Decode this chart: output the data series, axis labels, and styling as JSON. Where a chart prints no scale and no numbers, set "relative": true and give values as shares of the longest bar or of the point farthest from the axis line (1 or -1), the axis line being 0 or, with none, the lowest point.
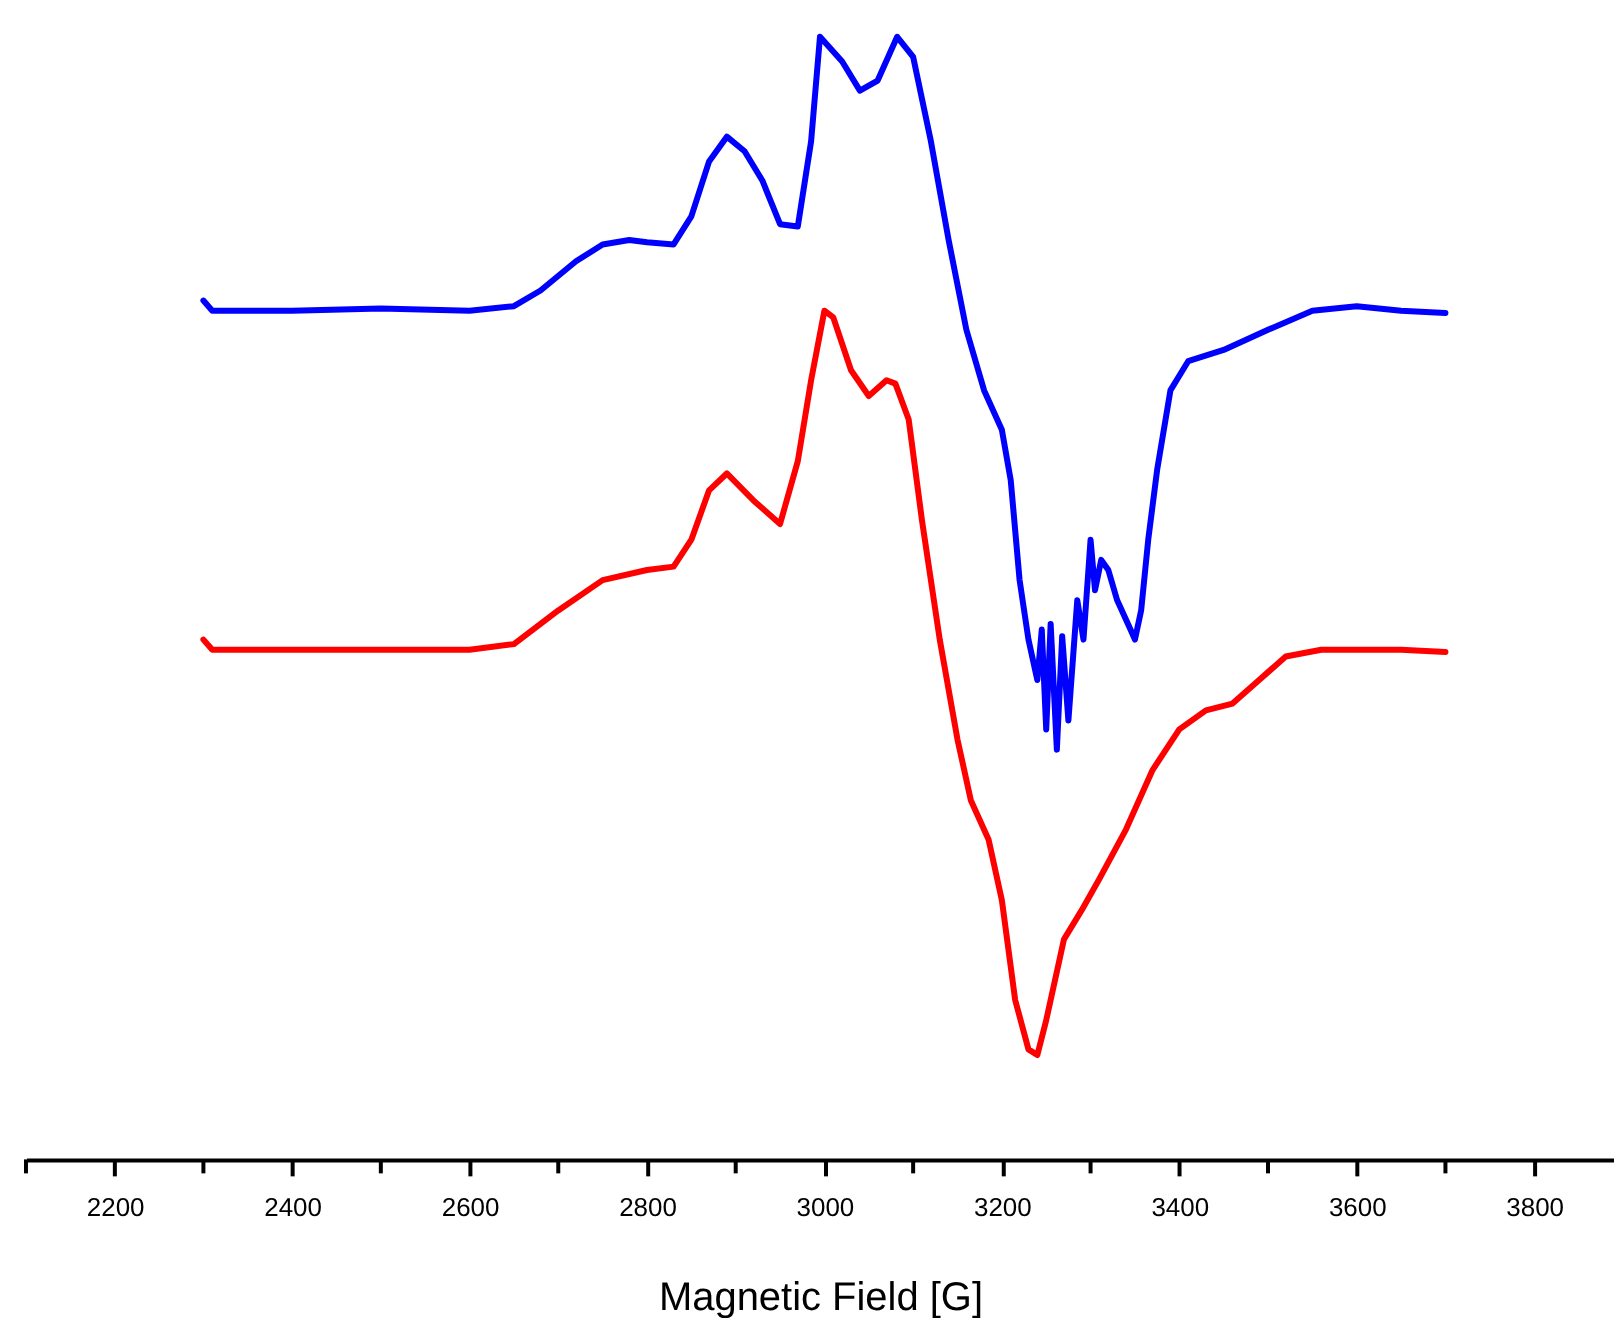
{
  "chart_data": {
    "type": "line",
    "relative": true,
    "xlabel": "Magnetic Field [G]",
    "xlim": [
      2100,
      3890
    ],
    "xticks": [
      {
        "value": 2100,
        "label": null
      },
      2200,
      {
        "value": 2300,
        "label": null
      },
      2400,
      {
        "value": 2500,
        "label": null
      },
      2600,
      {
        "value": 2700,
        "label": null
      },
      2800,
      {
        "value": 2900,
        "label": null
      },
      3000,
      {
        "value": 3100,
        "label": null
      },
      3200,
      {
        "value": 3300,
        "label": null
      },
      3400,
      {
        "value": 3500,
        "label": null
      },
      3600,
      {
        "value": 3700,
        "label": null
      },
      3800
    ],
    "grid": false,
    "series": [
      {
        "color": "#0000ff",
        "x": [
          2300,
          2310,
          2400,
          2500,
          2600,
          2650,
          2680,
          2720,
          2750,
          2780,
          2800,
          2830,
          2850,
          2870,
          2890,
          2910,
          2930,
          2950,
          2970,
          2985,
          2995,
          3020,
          3040,
          3060,
          3082,
          3100,
          3120,
          3140,
          3160,
          3180,
          3200,
          3210,
          3220,
          3230,
          3240,
          3245,
          3250,
          3255,
          3262,
          3268,
          3275,
          3285,
          3292,
          3300,
          3305,
          3312,
          3320,
          3330,
          3345,
          3350,
          3357,
          3365,
          3375,
          3390,
          3410,
          3450,
          3500,
          3550,
          3600,
          3650,
          3700
        ],
        "values": [
          0.765,
          0.756,
          0.756,
          0.758,
          0.756,
          0.76,
          0.774,
          0.8,
          0.815,
          0.819,
          0.817,
          0.815,
          0.84,
          0.889,
          0.911,
          0.898,
          0.872,
          0.833,
          0.831,
          0.907,
          1.0,
          0.978,
          0.952,
          0.961,
          1.0,
          0.982,
          0.907,
          0.819,
          0.739,
          0.685,
          0.65,
          0.605,
          0.516,
          0.463,
          0.427,
          0.472,
          0.383,
          0.477,
          0.365,
          0.466,
          0.391,
          0.498,
          0.463,
          0.552,
          0.507,
          0.534,
          0.525,
          0.498,
          0.472,
          0.463,
          0.489,
          0.552,
          0.614,
          0.685,
          0.711,
          0.721,
          0.739,
          0.756,
          0.76,
          0.756,
          0.754
        ]
      },
      {
        "color": "#ff0000",
        "x": [
          2300,
          2310,
          2400,
          2500,
          2600,
          2650,
          2700,
          2750,
          2800,
          2830,
          2850,
          2870,
          2890,
          2920,
          2950,
          2970,
          2985,
          3000,
          3010,
          3030,
          3050,
          3070,
          3080,
          3095,
          3110,
          3130,
          3150,
          3165,
          3185,
          3200,
          3215,
          3230,
          3240,
          3250,
          3270,
          3290,
          3310,
          3340,
          3370,
          3400,
          3430,
          3460,
          3490,
          3520,
          3560,
          3600,
          3650,
          3700
        ],
        "values": [
          0.463,
          0.454,
          0.454,
          0.454,
          0.454,
          0.459,
          0.489,
          0.516,
          0.525,
          0.528,
          0.552,
          0.596,
          0.611,
          0.587,
          0.566,
          0.622,
          0.694,
          0.756,
          0.75,
          0.703,
          0.68,
          0.694,
          0.691,
          0.659,
          0.569,
          0.463,
          0.374,
          0.32,
          0.285,
          0.231,
          0.142,
          0.098,
          0.093,
          0.124,
          0.196,
          0.222,
          0.25,
          0.294,
          0.347,
          0.383,
          0.4,
          0.406,
          0.427,
          0.448,
          0.454,
          0.454,
          0.454,
          0.452
        ]
      }
    ]
  }
}
